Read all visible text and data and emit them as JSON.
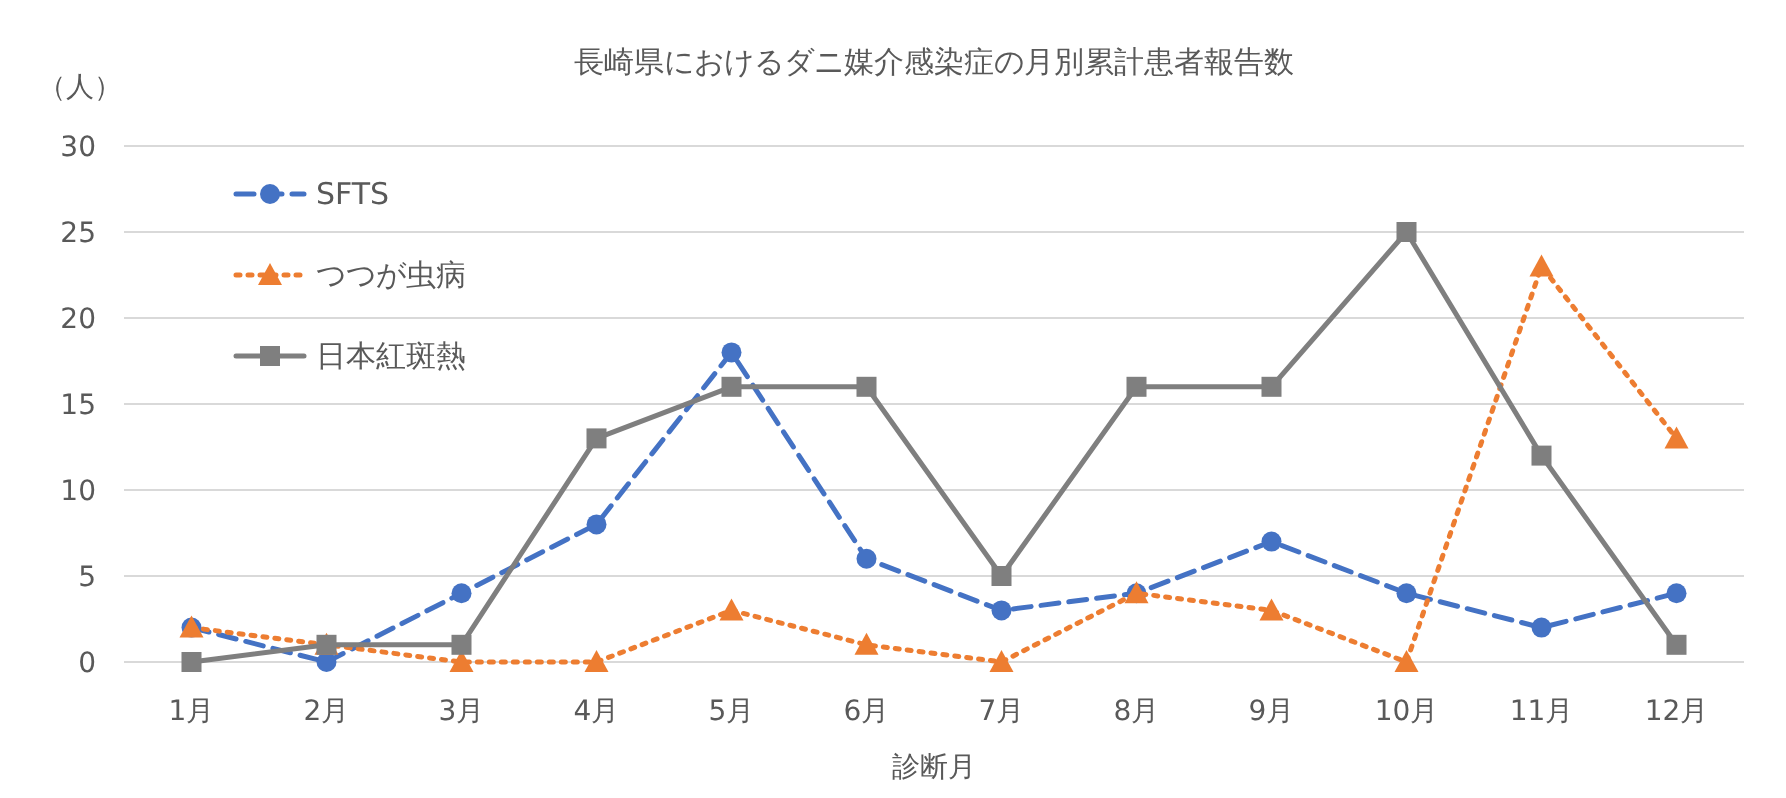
{
  "chart_data": {
    "type": "line",
    "title": "長崎県におけるダニ媒介感染症の月別累計患者報告数",
    "xlabel": "診断月",
    "ylabel": "（人）",
    "categories": [
      "1月",
      "2月",
      "3月",
      "4月",
      "5月",
      "6月",
      "7月",
      "8月",
      "9月",
      "10月",
      "11月",
      "12月"
    ],
    "ylim": [
      0,
      30
    ],
    "yticks": [
      0,
      5,
      10,
      15,
      20,
      25,
      30
    ],
    "grid": "y",
    "legend": "top left",
    "series": [
      {
        "name": "SFTS",
        "color": "#4472c4",
        "marker": "circle",
        "line_style": "dashed",
        "values": [
          2,
          0,
          4,
          8,
          18,
          6,
          3,
          4,
          7,
          4,
          2,
          4
        ]
      },
      {
        "name": "つつが虫病",
        "color": "#ed7d31",
        "marker": "triangle",
        "line_style": "dotted",
        "values": [
          2,
          1,
          0,
          0,
          3,
          1,
          0,
          4,
          3,
          0,
          23,
          13
        ]
      },
      {
        "name": "日本紅斑熱",
        "color": "#7f7f7f",
        "marker": "square",
        "line_style": "solid",
        "values": [
          0,
          1,
          1,
          13,
          16,
          16,
          5,
          16,
          16,
          25,
          12,
          1
        ]
      }
    ]
  }
}
